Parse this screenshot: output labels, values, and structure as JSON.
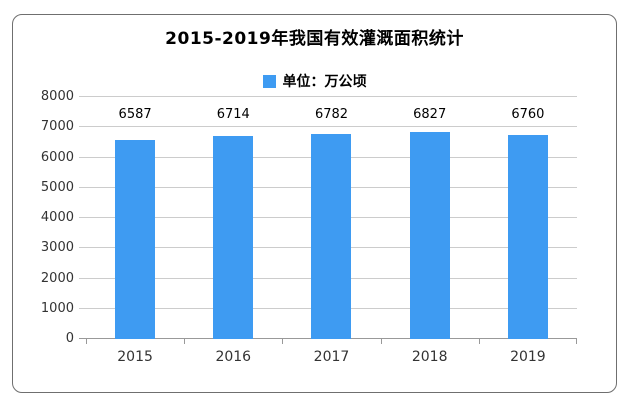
{
  "chart_data": {
    "type": "bar",
    "title": "2015-2019年我国有效灌溉面积统计",
    "legend": "单位：万公顷",
    "legend_position": "top-center",
    "categories": [
      "2015",
      "2016",
      "2017",
      "2018",
      "2019"
    ],
    "values": [
      6587,
      6714,
      6782,
      6827,
      6760
    ],
    "xlabel": "",
    "ylabel": "",
    "ylim": [
      0,
      8000
    ],
    "ytick_step": 1000,
    "grid": true,
    "colors": {
      "bar": "#3E9BF2",
      "grid_line": "#CCCCCC",
      "axis_line": "#999999",
      "tick_text": "#333333",
      "value_text": "#000000",
      "title_text": "#000000",
      "card_border": "#6F6F6F"
    }
  }
}
